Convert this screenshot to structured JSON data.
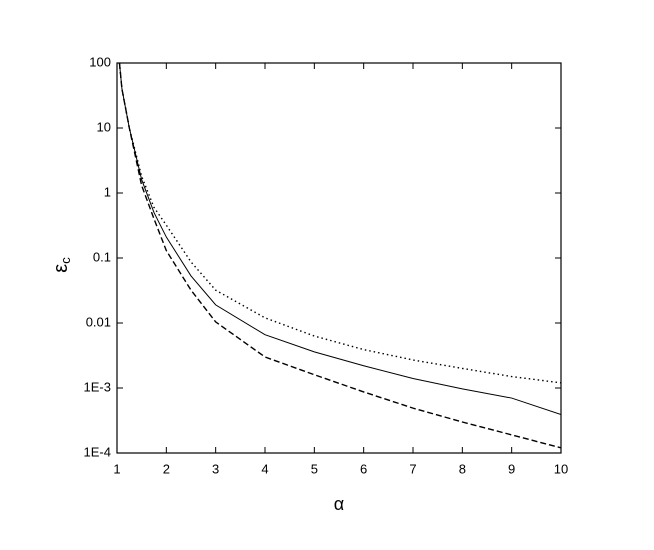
{
  "chart_data": {
    "type": "line",
    "xlabel": "α",
    "ylabel": {
      "symbol": "ε",
      "subscript": "c"
    },
    "x": [
      1.05,
      1.1,
      1.25,
      1.5,
      1.75,
      2,
      2.5,
      3,
      4,
      5,
      6,
      7,
      8,
      9,
      10
    ],
    "series": [
      {
        "color": "#000000",
        "dash": "dotted",
        "values": [
          100,
          40,
          10,
          1.8,
          0.6,
          0.32,
          0.087,
          0.032,
          0.012,
          0.0063,
          0.0039,
          0.0027,
          0.002,
          0.0015,
          0.0012
        ]
      },
      {
        "color": "#000000",
        "dash": "solid",
        "values": [
          100,
          40,
          10,
          1.6,
          0.5,
          0.21,
          0.053,
          0.019,
          0.0066,
          0.0036,
          0.0022,
          0.0014,
          0.00097,
          0.0007,
          0.00039
        ]
      },
      {
        "color": "#000000",
        "dash": "dashed",
        "values": [
          100,
          40,
          10,
          1.3,
          0.4,
          0.13,
          0.032,
          0.0104,
          0.003,
          0.0016,
          0.00087,
          0.00049,
          0.0003,
          0.00019,
          0.00012
        ]
      }
    ],
    "xlim": [
      1,
      10
    ],
    "xticks": [
      1,
      2,
      3,
      4,
      5,
      6,
      7,
      8,
      9,
      10
    ],
    "ylim": [
      0.0001,
      100
    ],
    "ylog": true,
    "yticks": [
      {
        "value": 0.0001,
        "label": "1E-4"
      },
      {
        "value": 0.001,
        "label": "1E-3"
      },
      0.01,
      0.1,
      1,
      10,
      100
    ],
    "grid": false
  }
}
